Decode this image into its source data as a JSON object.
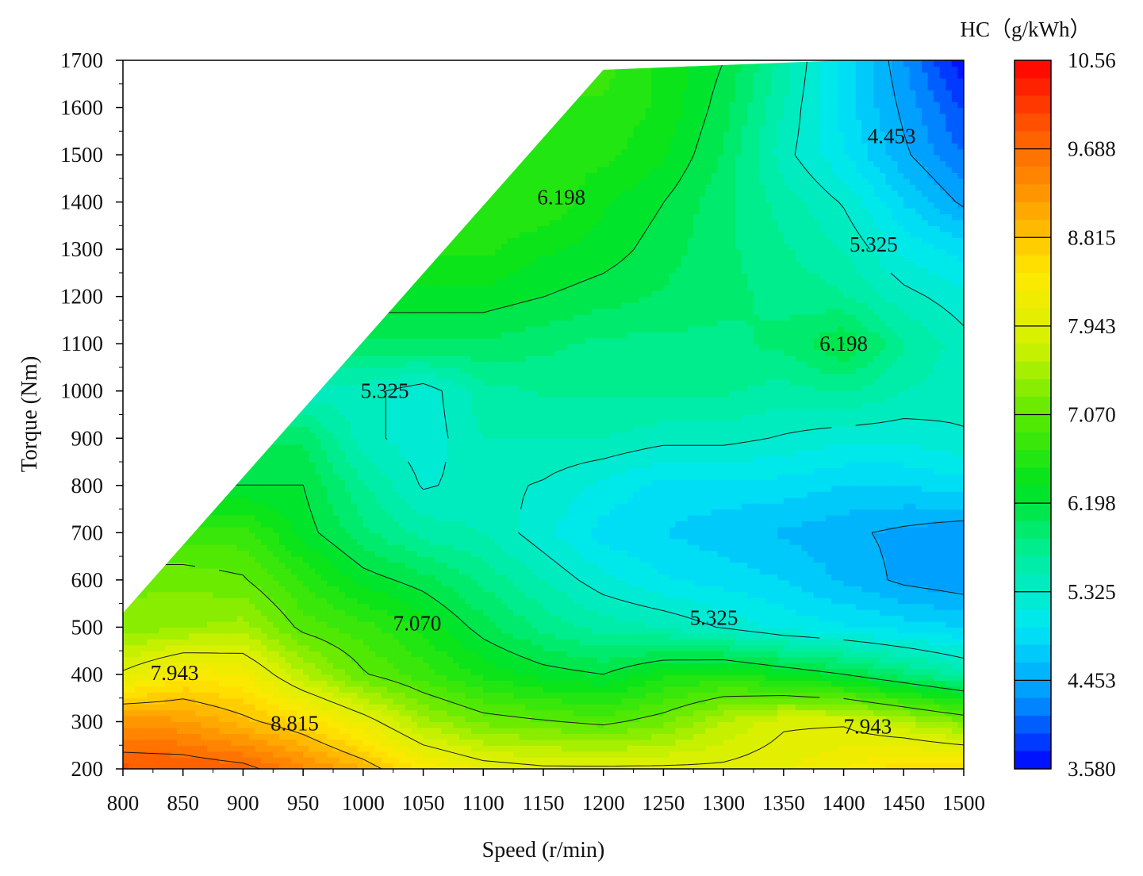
{
  "chart_data": {
    "type": "heatmap",
    "subtype": "filled-contour",
    "title": "",
    "xlabel": "Speed (r/min)",
    "ylabel": "Torque (Nm)",
    "xlim": [
      800,
      1500
    ],
    "ylim": [
      200,
      1700
    ],
    "x_ticks": [
      "800",
      "850",
      "900",
      "950",
      "1000",
      "1050",
      "1100",
      "1150",
      "1200",
      "1250",
      "1300",
      "1350",
      "1400",
      "1450",
      "1500"
    ],
    "y_ticks": [
      "200",
      "300",
      "400",
      "500",
      "600",
      "700",
      "800",
      "900",
      "1000",
      "1100",
      "1200",
      "1300",
      "1400",
      "1500",
      "1600",
      "1700"
    ],
    "x": [
      800,
      850,
      900,
      950,
      1000,
      1050,
      1100,
      1150,
      1200,
      1250,
      1300,
      1350,
      1400,
      1450,
      1500
    ],
    "y": [
      200,
      300,
      400,
      500,
      600,
      700,
      800,
      900,
      1000,
      1100,
      1200,
      1300,
      1400,
      1500,
      1600,
      1700
    ],
    "z": [
      [
        9.9,
        9.9,
        9.8,
        9.4,
        9.0,
        8.4,
        8.1,
        8.0,
        8.0,
        8.0,
        8.0,
        8.1,
        8.3,
        8.6,
        8.6
      ],
      [
        9.3,
        9.2,
        8.9,
        8.6,
        8.1,
        7.5,
        7.2,
        7.1,
        7.0,
        7.2,
        7.6,
        7.9,
        7.9,
        7.6,
        7.3
      ],
      [
        8.0,
        8.4,
        8.3,
        7.6,
        7.1,
        6.8,
        6.5,
        6.3,
        6.2,
        6.5,
        6.6,
        6.4,
        6.2,
        5.9,
        5.6
      ],
      [
        7.3,
        7.4,
        7.5,
        7.0,
        6.8,
        6.5,
        6.1,
        5.8,
        5.6,
        5.5,
        5.3,
        5.1,
        5.0,
        4.9,
        4.8
      ],
      [
        null,
        7.2,
        7.1,
        6.7,
        6.3,
        6.1,
        5.8,
        5.5,
        5.2,
        5.0,
        4.9,
        4.8,
        4.6,
        4.4,
        4.3
      ],
      [
        null,
        null,
        6.8,
        6.3,
        5.9,
        5.6,
        5.5,
        5.2,
        4.9,
        4.8,
        4.7,
        4.6,
        4.5,
        4.4,
        4.3
      ],
      [
        null,
        null,
        null,
        6.2,
        5.7,
        5.3,
        5.4,
        5.3,
        5.1,
        4.9,
        4.9,
        4.9,
        4.8,
        4.8,
        4.9
      ],
      [
        null,
        null,
        null,
        6.0,
        5.4,
        5.2,
        5.5,
        5.5,
        5.5,
        5.4,
        5.4,
        5.3,
        5.2,
        5.2,
        5.3
      ],
      [
        null,
        null,
        null,
        null,
        5.4,
        5.2,
        5.6,
        5.7,
        5.7,
        5.7,
        5.7,
        5.6,
        5.7,
        5.5,
        5.4
      ],
      [
        null,
        null,
        null,
        null,
        null,
        6.0,
        6.0,
        5.9,
        5.8,
        5.8,
        5.8,
        5.9,
        6.2,
        5.7,
        5.4
      ],
      [
        null,
        null,
        null,
        null,
        null,
        6.3,
        6.3,
        6.2,
        6.1,
        6.0,
        5.9,
        5.8,
        5.7,
        5.4,
        5.2
      ],
      [
        null,
        null,
        null,
        null,
        null,
        null,
        6.6,
        6.4,
        6.3,
        6.1,
        5.9,
        5.7,
        5.5,
        5.1,
        4.9
      ],
      [
        null,
        null,
        null,
        null,
        null,
        null,
        null,
        6.7,
        6.4,
        6.2,
        5.9,
        5.6,
        5.3,
        4.8,
        4.4
      ],
      [
        null,
        null,
        null,
        null,
        null,
        null,
        null,
        null,
        6.6,
        6.4,
        6.0,
        5.4,
        5.0,
        4.5,
        4.1
      ],
      [
        null,
        null,
        null,
        null,
        null,
        null,
        null,
        null,
        6.7,
        6.5,
        6.1,
        5.5,
        4.9,
        4.4,
        3.9
      ],
      [
        null,
        null,
        null,
        null,
        null,
        null,
        null,
        null,
        6.8,
        6.5,
        6.2,
        5.6,
        4.9,
        4.3,
        3.6
      ]
    ],
    "boundary_upper_left": [
      [
        800,
        530
      ],
      [
        1200,
        1680
      ],
      [
        1500,
        1710
      ]
    ],
    "contour_levels": [
      3.58,
      4.453,
      5.325,
      6.198,
      7.07,
      7.943,
      8.815,
      9.688,
      10.56
    ],
    "contour_labels": [
      {
        "text": "4.453",
        "x": 1440,
        "y": 1540
      },
      {
        "text": "6.198",
        "x": 1165,
        "y": 1410
      },
      {
        "text": "5.325",
        "x": 1425,
        "y": 1310
      },
      {
        "text": "6.198",
        "x": 1400,
        "y": 1100
      },
      {
        "text": "5.325",
        "x": 1018,
        "y": 1000
      },
      {
        "text": "7.070",
        "x": 1045,
        "y": 508
      },
      {
        "text": "5.325",
        "x": 1292,
        "y": 520
      },
      {
        "text": "7.943",
        "x": 843,
        "y": 403
      },
      {
        "text": "8.815",
        "x": 943,
        "y": 297
      },
      {
        "text": "7.943",
        "x": 1420,
        "y": 290
      }
    ],
    "colorbar": {
      "title": "HC（g/kWh）",
      "range": [
        3.58,
        10.56
      ],
      "tick_labels": [
        "10.56",
        "9.688",
        "8.815",
        "7.943",
        "7.070",
        "6.198",
        "5.325",
        "4.453",
        "3.580"
      ],
      "colors": [
        "#0000ff",
        "#0097ff",
        "#00e8f5",
        "#00ee9e",
        "#00e31c",
        "#5bea00",
        "#d4f200",
        "#ffe800",
        "#ff9f00",
        "#ff5a00",
        "#ff0000"
      ]
    },
    "grid": false,
    "legend": "colorbar-right"
  }
}
